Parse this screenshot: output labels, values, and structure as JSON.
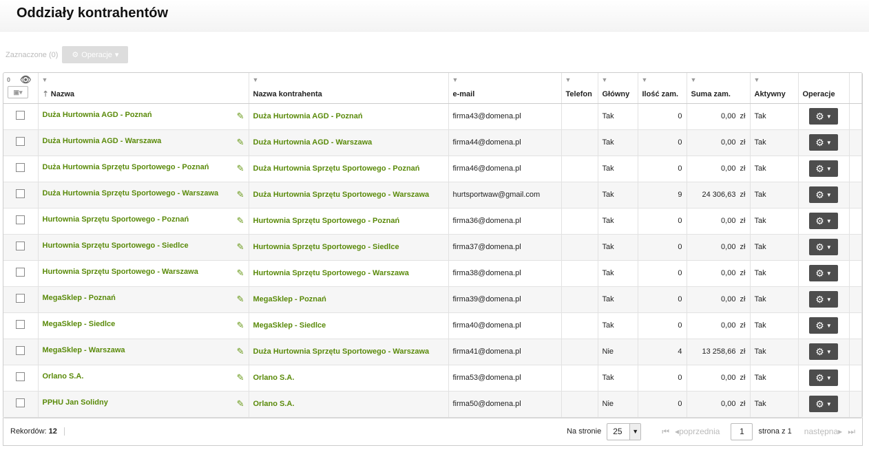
{
  "title": "Oddziały kontrahentów",
  "toolbar": {
    "selected": "Zaznaczone (0)",
    "operations": "Operacje"
  },
  "header": {
    "hidden_count": "0",
    "columns": [
      "Nazwa",
      "Nazwa kontrahenta",
      "e-mail",
      "Telefon",
      "Główny",
      "Ilość zam.",
      "Suma zam.",
      "Aktywny",
      "Operacje"
    ]
  },
  "rows": [
    {
      "name": "Duża Hurtownia AGD - Poznań",
      "contractor": "Duża Hurtownia AGD - Poznań",
      "email": "firma43@domena.pl",
      "phone": "",
      "main": "Tak",
      "orders": "0",
      "sum": "0,00  zł",
      "active": "Tak"
    },
    {
      "name": "Duża Hurtownia AGD - Warszawa",
      "contractor": "Duża Hurtownia AGD - Warszawa",
      "email": "firma44@domena.pl",
      "phone": "",
      "main": "Tak",
      "orders": "0",
      "sum": "0,00  zł",
      "active": "Tak"
    },
    {
      "name": "Duża Hurtownia Sprzętu Sportowego - Poznań",
      "contractor": "Duża Hurtownia Sprzętu Sportowego - Poznań",
      "email": "firma46@domena.pl",
      "phone": "",
      "main": "Tak",
      "orders": "0",
      "sum": "0,00  zł",
      "active": "Tak"
    },
    {
      "name": "Duża Hurtownia Sprzętu Sportowego - Warszawa",
      "contractor": "Duża Hurtownia Sprzętu Sportowego - Warszawa",
      "email": "hurtsportwaw@gmail.com",
      "phone": "",
      "main": "Tak",
      "orders": "9",
      "sum": "24 306,63  zł",
      "active": "Tak"
    },
    {
      "name": "Hurtownia Sprzętu Sportowego - Poznań",
      "contractor": "Hurtownia Sprzętu Sportowego - Poznań",
      "email": "firma36@domena.pl",
      "phone": "",
      "main": "Tak",
      "orders": "0",
      "sum": "0,00  zł",
      "active": "Tak"
    },
    {
      "name": "Hurtownia Sprzętu Sportowego - Siedlce",
      "contractor": "Hurtownia Sprzętu Sportowego - Siedlce",
      "email": "firma37@domena.pl",
      "phone": "",
      "main": "Tak",
      "orders": "0",
      "sum": "0,00  zł",
      "active": "Tak"
    },
    {
      "name": "Hurtownia Sprzętu Sportowego - Warszawa",
      "contractor": "Hurtownia Sprzętu Sportowego - Warszawa",
      "email": "firma38@domena.pl",
      "phone": "",
      "main": "Tak",
      "orders": "0",
      "sum": "0,00  zł",
      "active": "Tak"
    },
    {
      "name": "MegaSklep - Poznań",
      "contractor": "MegaSklep - Poznań",
      "email": "firma39@domena.pl",
      "phone": "",
      "main": "Tak",
      "orders": "0",
      "sum": "0,00  zł",
      "active": "Tak"
    },
    {
      "name": "MegaSklep - Siedlce",
      "contractor": "MegaSklep - Siedlce",
      "email": "firma40@domena.pl",
      "phone": "",
      "main": "Tak",
      "orders": "0",
      "sum": "0,00  zł",
      "active": "Tak"
    },
    {
      "name": "MegaSklep - Warszawa",
      "contractor": "Duża Hurtownia Sprzętu Sportowego - Warszawa",
      "email": "firma41@domena.pl",
      "phone": "",
      "main": "Nie",
      "orders": "4",
      "sum": "13 258,66  zł",
      "active": "Tak"
    },
    {
      "name": "Orlano S.A.",
      "contractor": "Orlano S.A.",
      "email": "firma53@domena.pl",
      "phone": "",
      "main": "Tak",
      "orders": "0",
      "sum": "0,00  zł",
      "active": "Tak"
    },
    {
      "name": "PPHU Jan Solidny",
      "contractor": "Orlano S.A.",
      "email": "firma50@domena.pl",
      "phone": "",
      "main": "Nie",
      "orders": "0",
      "sum": "0,00  zł",
      "active": "Tak"
    }
  ],
  "footer": {
    "records_label": "Rekordów:",
    "records": "12",
    "per_page_label": "Na stronie",
    "per_page": "25",
    "prev": "poprzednia",
    "page": "1",
    "page_of": "strona z 1",
    "next": "następna"
  },
  "colors": {
    "link": "#5a8a0a",
    "gear_button": "#4d4d4d"
  }
}
